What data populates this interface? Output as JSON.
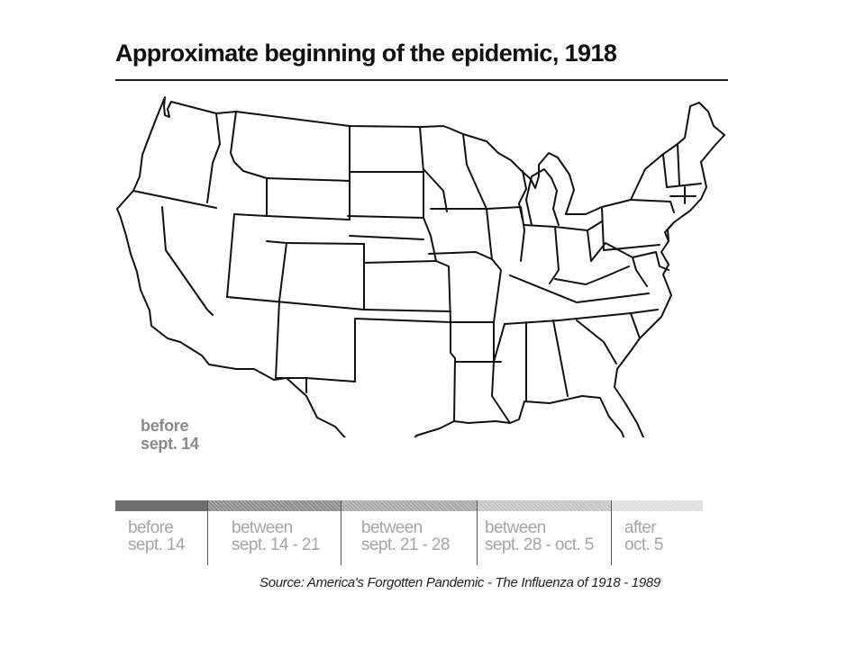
{
  "title": "Approximate beginning of the epidemic, 1918",
  "map_note": {
    "line1": "before",
    "line2": "sept. 14"
  },
  "legend": [
    {
      "line1": "before",
      "line2": "sept. 14",
      "color": "#6e6e6e"
    },
    {
      "line1": "between",
      "line2": "sept. 14 - 21",
      "color": "#8c8c8c"
    },
    {
      "line1": "between",
      "line2": "sept. 21 - 28",
      "color": "#a8a8a8"
    },
    {
      "line1": "between",
      "line2": "sept. 28 - oct. 5",
      "color": "#c4c4c4"
    },
    {
      "line1": "after",
      "line2": "oct. 5",
      "color": "#dedede"
    }
  ],
  "source": "Source: America's Forgotten Pandemic - The Influenza of 1918 - 1989"
}
